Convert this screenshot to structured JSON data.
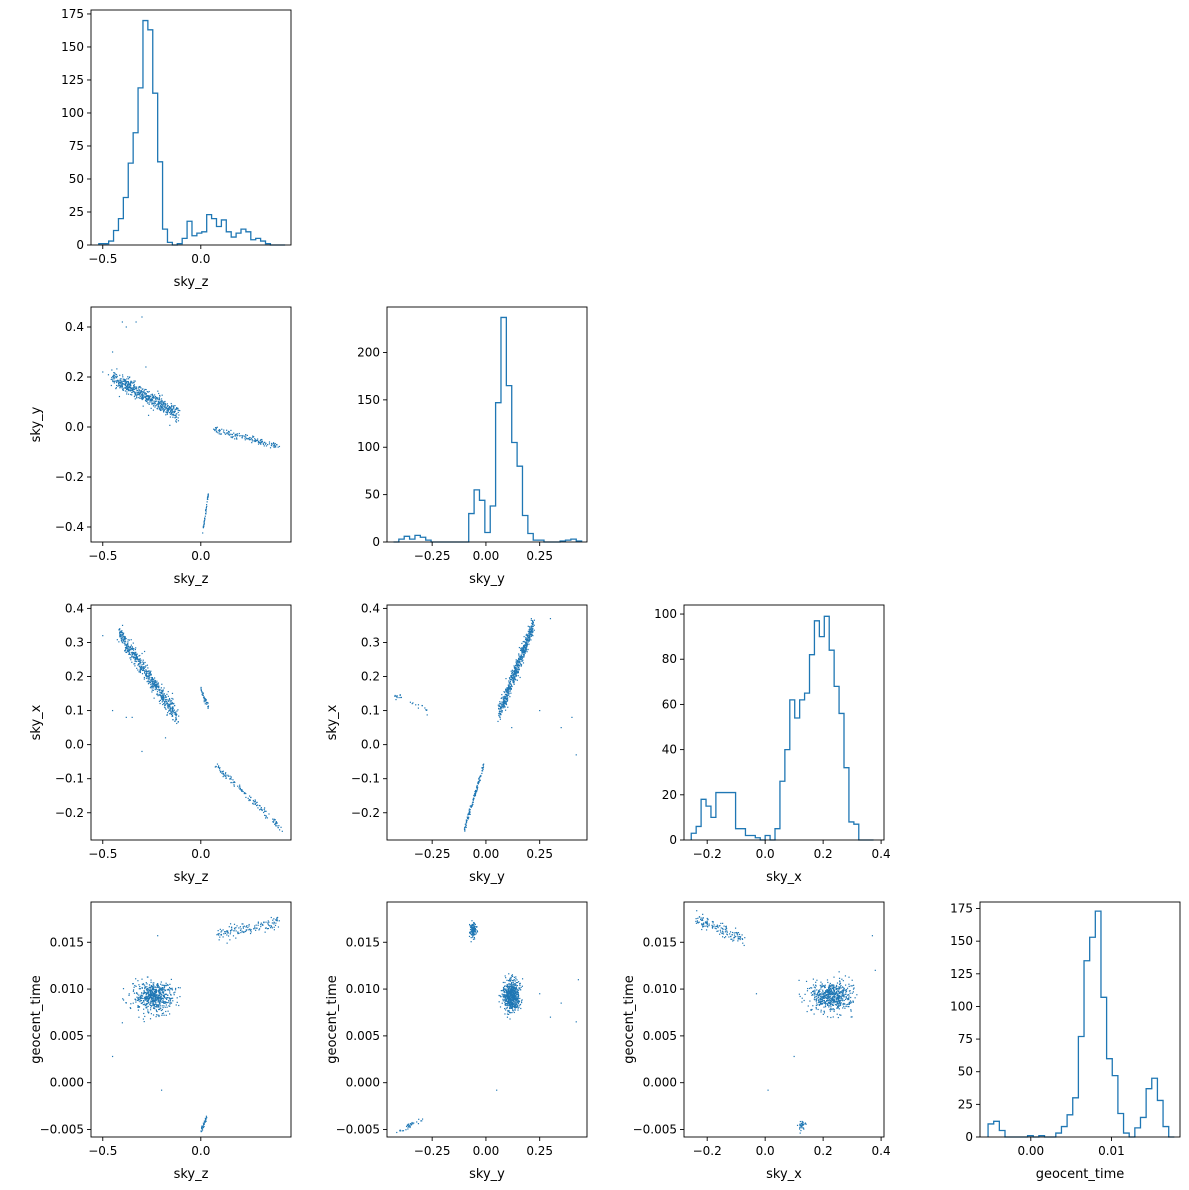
{
  "accent_color": "#1f77b4",
  "chart_data": [
    {
      "panel": "sky_z-hist",
      "type": "histogram",
      "xlabel": "sky_z",
      "ylabel": "",
      "xlim": [
        -0.56,
        0.46
      ],
      "ylim": [
        0,
        178
      ],
      "xticks": [
        -0.5,
        0.0
      ],
      "xtick_labels": [
        "−0.5",
        "0.0"
      ],
      "yticks": [
        0,
        25,
        50,
        75,
        100,
        125,
        150,
        175
      ],
      "ytick_labels": [
        "0",
        "25",
        "50",
        "75",
        "100",
        "125",
        "150",
        "175"
      ],
      "bin_edges": [
        -0.52,
        -0.495,
        -0.47,
        -0.445,
        -0.42,
        -0.395,
        -0.37,
        -0.345,
        -0.32,
        -0.295,
        -0.27,
        -0.245,
        -0.22,
        -0.195,
        -0.17,
        -0.145,
        -0.12,
        -0.095,
        -0.07,
        -0.045,
        -0.02,
        0.005,
        0.03,
        0.055,
        0.08,
        0.105,
        0.13,
        0.155,
        0.18,
        0.205,
        0.23,
        0.255,
        0.28,
        0.305,
        0.33,
        0.355,
        0.38,
        0.405,
        0.43
      ],
      "counts": [
        1,
        1,
        3,
        11,
        20,
        36,
        62,
        85,
        119,
        170,
        163,
        115,
        63,
        12,
        2,
        0,
        1,
        5,
        18,
        7,
        9,
        10,
        23,
        20,
        14,
        19,
        10,
        6,
        9,
        12,
        10,
        4,
        5,
        3,
        1,
        0,
        0,
        0
      ]
    },
    {
      "panel": "sky_z-vs-sky_y",
      "type": "scatter",
      "xlabel": "sky_z",
      "ylabel": "sky_y",
      "xlim": [
        -0.56,
        0.46
      ],
      "ylim": [
        -0.46,
        0.48
      ],
      "xticks": [
        -0.5,
        0.0
      ],
      "xtick_labels": [
        "−0.5",
        "0.0"
      ],
      "yticks": [
        -0.4,
        -0.2,
        0.0,
        0.2,
        0.4
      ],
      "ytick_labels": [
        "−0.4",
        "−0.2",
        "0.0",
        "0.2",
        "0.4"
      ],
      "clusters": [
        {
          "n": 560,
          "from": [
            -0.45,
            0.2
          ],
          "to": [
            -0.12,
            0.05
          ],
          "spread": 0.03
        },
        {
          "n": 140,
          "from": [
            0.07,
            -0.01
          ],
          "to": [
            0.4,
            -0.08
          ],
          "spread": 0.012
        },
        {
          "n": 45,
          "from": [
            0.01,
            -0.42
          ],
          "to": [
            0.04,
            -0.26
          ],
          "spread": 0.008
        }
      ],
      "outliers": [
        [
          -0.4,
          0.42
        ],
        [
          -0.3,
          0.44
        ],
        [
          -0.45,
          0.3
        ],
        [
          -0.5,
          0.22
        ],
        [
          -0.28,
          0.24
        ],
        [
          -0.33,
          0.42
        ],
        [
          -0.38,
          0.4
        ]
      ]
    },
    {
      "panel": "sky_y-hist",
      "type": "histogram",
      "xlabel": "sky_y",
      "ylabel": "",
      "xlim": [
        -0.46,
        0.47
      ],
      "ylim": [
        0,
        248
      ],
      "xticks": [
        -0.25,
        0.0,
        0.25
      ],
      "xtick_labels": [
        "−0.25",
        "0.00",
        "0.25"
      ],
      "yticks": [
        0,
        50,
        100,
        150,
        200
      ],
      "ytick_labels": [
        "0",
        "50",
        "100",
        "150",
        "200"
      ],
      "bin_edges": [
        -0.43,
        -0.405,
        -0.38,
        -0.355,
        -0.33,
        -0.305,
        -0.28,
        -0.255,
        -0.23,
        -0.205,
        -0.18,
        -0.155,
        -0.13,
        -0.105,
        -0.08,
        -0.055,
        -0.03,
        -0.005,
        0.02,
        0.045,
        0.07,
        0.095,
        0.12,
        0.145,
        0.17,
        0.195,
        0.22,
        0.245,
        0.27,
        0.295,
        0.32,
        0.345,
        0.37,
        0.395,
        0.42,
        0.445
      ],
      "counts": [
        0,
        3,
        6,
        3,
        7,
        5,
        2,
        0,
        0,
        0,
        0,
        0,
        0,
        0,
        30,
        55,
        44,
        10,
        38,
        147,
        237,
        165,
        105,
        80,
        28,
        9,
        2,
        2,
        0,
        0,
        0,
        1,
        2,
        3,
        1
      ]
    },
    {
      "panel": "sky_z-vs-sky_x",
      "type": "scatter",
      "xlabel": "sky_z",
      "ylabel": "sky_x",
      "xlim": [
        -0.56,
        0.46
      ],
      "ylim": [
        -0.28,
        0.41
      ],
      "xticks": [
        -0.5,
        0.0
      ],
      "xtick_labels": [
        "−0.5",
        "0.0"
      ],
      "yticks": [
        -0.2,
        -0.1,
        0.0,
        0.1,
        0.2,
        0.3,
        0.4
      ],
      "ytick_labels": [
        "−0.2",
        "−0.1",
        "0.0",
        "0.1",
        "0.2",
        "0.3",
        "0.4"
      ],
      "clusters": [
        {
          "n": 580,
          "from": [
            -0.42,
            0.33
          ],
          "to": [
            -0.12,
            0.08
          ],
          "spread": 0.025
        },
        {
          "n": 130,
          "from": [
            0.07,
            -0.06
          ],
          "to": [
            0.42,
            -0.25
          ],
          "spread": 0.01
        },
        {
          "n": 40,
          "from": [
            0.0,
            0.16
          ],
          "to": [
            0.04,
            0.11
          ],
          "spread": 0.01
        }
      ],
      "outliers": [
        [
          -0.45,
          0.1
        ],
        [
          -0.35,
          0.08
        ],
        [
          -0.3,
          -0.02
        ],
        [
          -0.18,
          0.02
        ],
        [
          -0.38,
          0.08
        ],
        [
          -0.5,
          0.32
        ]
      ]
    },
    {
      "panel": "sky_y-vs-sky_x",
      "type": "scatter",
      "xlabel": "sky_y",
      "ylabel": "sky_x",
      "xlim": [
        -0.46,
        0.47
      ],
      "ylim": [
        -0.28,
        0.41
      ],
      "xticks": [
        -0.25,
        0.0,
        0.25
      ],
      "xtick_labels": [
        "−0.25",
        "0.00",
        "0.25"
      ],
      "yticks": [
        -0.2,
        -0.1,
        0.0,
        0.1,
        0.2,
        0.3,
        0.4
      ],
      "ytick_labels": [
        "−0.2",
        "−0.1",
        "0.0",
        "0.1",
        "0.2",
        "0.3",
        "0.4"
      ],
      "clusters": [
        {
          "n": 580,
          "from": [
            0.06,
            0.09
          ],
          "to": [
            0.22,
            0.35
          ],
          "spread": 0.025
        },
        {
          "n": 130,
          "from": [
            -0.1,
            -0.25
          ],
          "to": [
            -0.01,
            -0.06
          ],
          "spread": 0.01
        },
        {
          "n": 25,
          "from": [
            -0.43,
            0.15
          ],
          "to": [
            -0.27,
            0.1
          ],
          "spread": 0.01
        }
      ],
      "outliers": [
        [
          0.4,
          0.08
        ],
        [
          0.42,
          -0.03
        ],
        [
          0.35,
          0.05
        ],
        [
          0.25,
          0.1
        ],
        [
          0.3,
          0.37
        ],
        [
          0.12,
          0.05
        ]
      ]
    },
    {
      "panel": "sky_x-hist",
      "type": "histogram",
      "xlabel": "sky_x",
      "ylabel": "",
      "xlim": [
        -0.28,
        0.41
      ],
      "ylim": [
        0,
        104
      ],
      "xticks": [
        -0.2,
        0.0,
        0.2,
        0.4
      ],
      "xtick_labels": [
        "−0.2",
        "0.0",
        "0.2",
        "0.4"
      ],
      "yticks": [
        0,
        20,
        40,
        60,
        80,
        100
      ],
      "ytick_labels": [
        "0",
        "20",
        "40",
        "60",
        "80",
        "100"
      ],
      "bin_edges": [
        -0.255,
        -0.238,
        -0.221,
        -0.204,
        -0.187,
        -0.17,
        -0.153,
        -0.136,
        -0.119,
        -0.102,
        -0.085,
        -0.068,
        -0.051,
        -0.034,
        -0.017,
        0.0,
        0.017,
        0.034,
        0.051,
        0.068,
        0.085,
        0.102,
        0.119,
        0.136,
        0.153,
        0.17,
        0.187,
        0.204,
        0.221,
        0.238,
        0.255,
        0.272,
        0.289,
        0.306,
        0.323,
        0.34,
        0.357,
        0.374
      ],
      "counts": [
        3,
        6,
        18,
        15,
        10,
        21,
        21,
        21,
        21,
        5,
        5,
        2,
        2,
        1,
        0,
        2,
        0,
        5,
        26,
        40,
        62,
        54,
        62,
        65,
        82,
        97,
        90,
        99,
        84,
        68,
        56,
        32,
        8,
        7,
        0,
        0,
        0
      ]
    },
    {
      "panel": "sky_z-vs-geocent_time",
      "type": "scatter",
      "xlabel": "sky_z",
      "ylabel": "geocent_time",
      "xlim": [
        -0.56,
        0.46
      ],
      "ylim": [
        -0.0058,
        0.0193
      ],
      "xticks": [
        -0.5,
        0.0
      ],
      "xtick_labels": [
        "−0.5",
        "0.0"
      ],
      "yticks": [
        -0.005,
        0.0,
        0.005,
        0.01,
        0.015
      ],
      "ytick_labels": [
        "−0.005",
        "0.000",
        "0.005",
        "0.010",
        "0.015"
      ],
      "clusters": [
        {
          "n": 600,
          "center": [
            -0.24,
            0.0092
          ],
          "sx": 0.09,
          "sy": 0.0016
        },
        {
          "n": 140,
          "from": [
            0.08,
            0.0158
          ],
          "to": [
            0.4,
            0.0172
          ],
          "spread": 0.0007
        },
        {
          "n": 35,
          "from": [
            0.0,
            -0.0052
          ],
          "to": [
            0.03,
            -0.0037
          ],
          "spread": 0.0003
        }
      ],
      "outliers": [
        [
          -0.45,
          0.0028
        ],
        [
          -0.2,
          -0.0008
        ],
        [
          -0.22,
          0.0157
        ],
        [
          -0.4,
          0.0064
        ]
      ]
    },
    {
      "panel": "sky_y-vs-geocent_time",
      "type": "scatter",
      "xlabel": "sky_y",
      "ylabel": "geocent_time",
      "xlim": [
        -0.46,
        0.47
      ],
      "ylim": [
        -0.0058,
        0.0193
      ],
      "xticks": [
        -0.25,
        0.0,
        0.25
      ],
      "xtick_labels": [
        "−0.25",
        "0.00",
        "0.25"
      ],
      "yticks": [
        -0.005,
        0.0,
        0.005,
        0.01,
        0.015
      ],
      "ytick_labels": [
        "−0.005",
        "0.000",
        "0.005",
        "0.010",
        "0.015"
      ],
      "clusters": [
        {
          "n": 600,
          "center": [
            0.12,
            0.0093
          ],
          "sx": 0.04,
          "sy": 0.0016
        },
        {
          "n": 140,
          "center": [
            -0.06,
            0.0163
          ],
          "sx": 0.015,
          "sy": 0.0008
        },
        {
          "n": 35,
          "from": [
            -0.42,
            -0.0053
          ],
          "to": [
            -0.28,
            -0.0038
          ],
          "spread": 0.0003
        }
      ],
      "outliers": [
        [
          0.35,
          0.0085
        ],
        [
          0.43,
          0.011
        ],
        [
          0.25,
          0.0095
        ],
        [
          0.3,
          0.007
        ],
        [
          0.05,
          -0.0008
        ],
        [
          0.42,
          0.0065
        ]
      ]
    },
    {
      "panel": "sky_x-vs-geocent_time",
      "type": "scatter",
      "xlabel": "sky_x",
      "ylabel": "geocent_time",
      "xlim": [
        -0.28,
        0.41
      ],
      "ylim": [
        -0.0058,
        0.0193
      ],
      "xticks": [
        -0.2,
        0.0,
        0.2,
        0.4
      ],
      "xtick_labels": [
        "−0.2",
        "0.0",
        "0.2",
        "0.4"
      ],
      "yticks": [
        -0.005,
        0.0,
        0.005,
        0.01,
        0.015
      ],
      "ytick_labels": [
        "−0.005",
        "0.000",
        "0.005",
        "0.010",
        "0.015"
      ],
      "clusters": [
        {
          "n": 600,
          "center": [
            0.23,
            0.0092
          ],
          "sx": 0.07,
          "sy": 0.0016
        },
        {
          "n": 140,
          "from": [
            -0.24,
            0.0175
          ],
          "to": [
            -0.07,
            0.0152
          ],
          "spread": 0.0007
        },
        {
          "n": 35,
          "center": [
            0.125,
            -0.0045
          ],
          "sx": 0.012,
          "sy": 0.0005
        }
      ],
      "outliers": [
        [
          0.1,
          0.0028
        ],
        [
          0.01,
          -0.0008
        ],
        [
          -0.03,
          0.0095
        ],
        [
          0.37,
          0.0157
        ],
        [
          0.38,
          0.012
        ]
      ]
    },
    {
      "panel": "geocent_time-hist",
      "type": "histogram",
      "xlabel": "geocent_time",
      "ylabel": "",
      "xlim": [
        -0.0063,
        0.0185
      ],
      "ylim": [
        0,
        180
      ],
      "xticks": [
        0.0,
        0.01
      ],
      "xtick_labels": [
        "0.00",
        "0.01"
      ],
      "yticks": [
        0,
        25,
        50,
        75,
        100,
        125,
        150,
        175
      ],
      "ytick_labels": [
        "0",
        "25",
        "50",
        "75",
        "100",
        "125",
        "150",
        "175"
      ],
      "bin_edges": [
        -0.0053,
        -0.0046,
        -0.0039,
        -0.0032,
        -0.0025,
        -0.0018,
        -0.0011,
        -0.0004,
        0.0003,
        0.001,
        0.0017,
        0.0024,
        0.0031,
        0.0038,
        0.0045,
        0.0052,
        0.0059,
        0.0066,
        0.0073,
        0.008,
        0.0087,
        0.0094,
        0.0101,
        0.0108,
        0.0115,
        0.0122,
        0.0129,
        0.0136,
        0.0143,
        0.015,
        0.0157,
        0.0164,
        0.0171,
        0.0178
      ],
      "counts": [
        10,
        12,
        5,
        0,
        0,
        0,
        0,
        1,
        0,
        1,
        0,
        0,
        3,
        8,
        17,
        30,
        77,
        135,
        153,
        173,
        107,
        60,
        47,
        18,
        3,
        0,
        7,
        15,
        37,
        45,
        28,
        8,
        0
      ]
    }
  ]
}
